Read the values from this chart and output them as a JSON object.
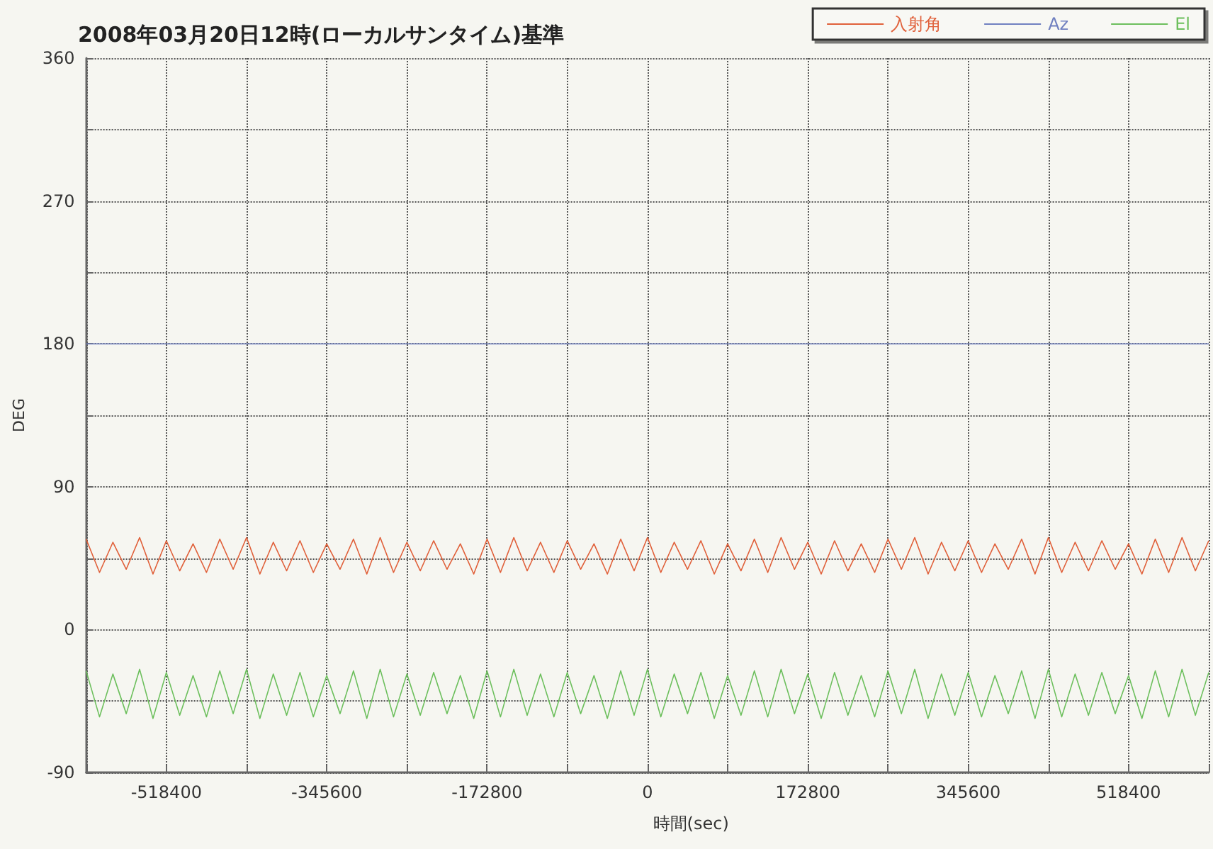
{
  "chart_data": {
    "type": "line",
    "title": "2008年03月20日12時(ローカルサンタイム)基準",
    "xlabel": "時間(sec)",
    "ylabel": "DEG",
    "x": [
      -604800,
      -590400,
      -576000,
      -561600,
      -547200,
      -532800,
      -518400,
      -504000,
      -489600,
      -475200,
      -460800,
      -446400,
      -432000,
      -417600,
      -403200,
      -388800,
      -374400,
      -360000,
      -345600,
      -331200,
      -316800,
      -302400,
      -288000,
      -273600,
      -259200,
      -244800,
      -230400,
      -216000,
      -201600,
      -187200,
      -172800,
      -158400,
      -144000,
      -129600,
      -115200,
      -100800,
      -86400,
      -72000,
      -57600,
      -43200,
      -28800,
      -14400,
      0,
      14400,
      28800,
      43200,
      57600,
      72000,
      86400,
      100800,
      115200,
      129600,
      144000,
      158400,
      172800,
      187200,
      201600,
      216000,
      230400,
      244800,
      259200,
      273600,
      288000,
      302400,
      316800,
      331200,
      345600,
      360000,
      374400,
      388800,
      403200,
      417600,
      432000,
      446400,
      460800,
      475200,
      489600,
      504000,
      518400,
      532800,
      547200,
      561600,
      576000,
      590400,
      604800
    ],
    "series": [
      {
        "name": "入射角",
        "color": "#e0603a",
        "values": [
          57,
          36,
          55,
          38,
          58,
          35,
          56,
          37,
          54,
          36,
          57,
          38,
          58,
          35,
          55,
          37,
          56,
          36,
          54,
          38,
          57,
          35,
          58,
          36,
          55,
          37,
          56,
          38,
          54,
          35,
          57,
          36,
          58,
          37,
          55,
          36,
          56,
          38,
          54,
          35,
          57,
          37,
          58,
          36,
          55,
          38,
          56,
          35,
          54,
          37,
          57,
          36,
          58,
          38,
          55,
          35,
          56,
          37,
          54,
          36,
          57,
          38,
          58,
          35,
          55,
          37,
          56,
          36,
          54,
          38,
          57,
          35,
          58,
          36,
          55,
          37,
          56,
          38,
          54,
          35,
          57,
          36,
          58,
          37,
          56
        ]
      },
      {
        "name": "Az",
        "color": "#7080c0",
        "values": [
          180,
          180,
          180,
          180,
          180,
          180,
          180,
          180,
          180,
          180,
          180,
          180,
          180,
          180,
          180,
          180,
          180,
          180,
          180,
          180,
          180,
          180,
          180,
          180,
          180,
          180,
          180,
          180,
          180,
          180,
          180,
          180,
          180,
          180,
          180,
          180,
          180,
          180,
          180,
          180,
          180,
          180,
          180,
          180,
          180,
          180,
          180,
          180,
          180,
          180,
          180,
          180,
          180,
          180,
          180,
          180,
          180,
          180,
          180,
          180,
          180,
          180,
          180,
          180,
          180,
          180,
          180,
          180,
          180,
          180,
          180,
          180,
          180,
          180,
          180,
          180,
          180,
          180,
          180,
          180,
          180,
          180,
          180,
          180,
          180
        ]
      },
      {
        "name": "El",
        "color": "#6cbf5c",
        "values": [
          -26,
          -55,
          -28,
          -53,
          -25,
          -56,
          -27,
          -54,
          -29,
          -55,
          -26,
          -53,
          -25,
          -56,
          -28,
          -54,
          -27,
          -55,
          -29,
          -53,
          -26,
          -56,
          -25,
          -55,
          -28,
          -54,
          -27,
          -53,
          -29,
          -56,
          -26,
          -55,
          -25,
          -54,
          -28,
          -55,
          -27,
          -53,
          -29,
          -56,
          -26,
          -54,
          -25,
          -55,
          -28,
          -53,
          -27,
          -56,
          -29,
          -54,
          -26,
          -55,
          -25,
          -53,
          -28,
          -56,
          -27,
          -54,
          -29,
          -55,
          -26,
          -53,
          -25,
          -56,
          -28,
          -54,
          -27,
          -55,
          -29,
          -53,
          -26,
          -56,
          -25,
          -55,
          -28,
          -54,
          -27,
          -53,
          -29,
          -56,
          -26,
          -55,
          -25,
          -54,
          -27
        ]
      }
    ],
    "xlim": [
      -604800,
      604800
    ],
    "xticks": [
      {
        "value": -604800,
        "label": null
      },
      -518400,
      {
        "value": -432000,
        "label": null
      },
      -345600,
      {
        "value": -259200,
        "label": null
      },
      -172800,
      {
        "value": -86400,
        "label": null
      },
      0,
      {
        "value": 86400,
        "label": null
      },
      172800,
      {
        "value": 259200,
        "label": null
      },
      345600,
      {
        "value": 432000,
        "label": null
      },
      518400,
      {
        "value": 604800,
        "label": null
      }
    ],
    "ylim": [
      -90,
      360
    ],
    "yticks": [
      -90,
      {
        "value": -45,
        "label": null
      },
      0,
      {
        "value": 45,
        "label": null
      },
      90,
      {
        "value": 135,
        "label": null
      },
      180,
      {
        "value": 225,
        "label": null
      },
      270,
      {
        "value": 315,
        "label": null
      },
      360
    ],
    "grid": true,
    "legend": "top right",
    "marker": "none",
    "line_style": "solid"
  }
}
